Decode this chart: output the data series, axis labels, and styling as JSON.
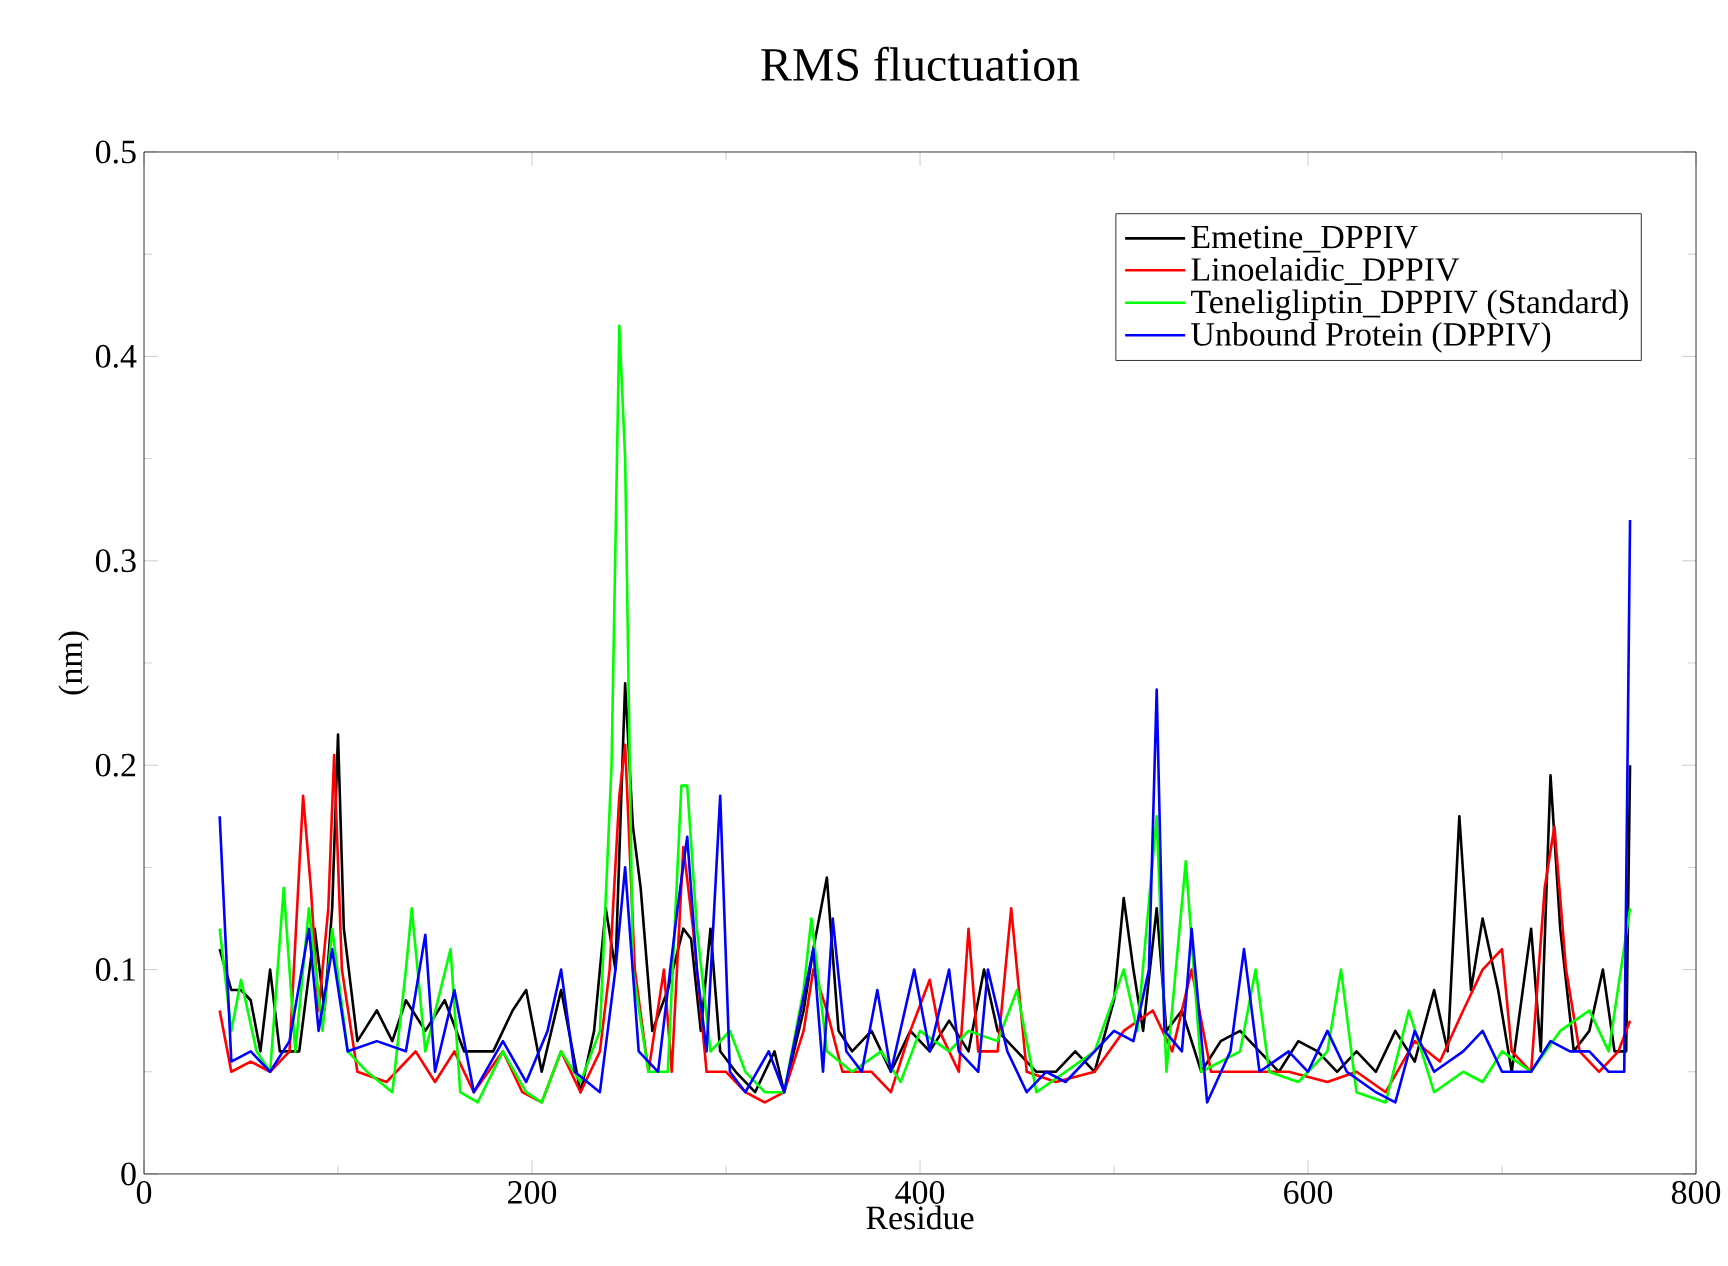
{
  "chart_data": {
    "type": "line",
    "title": "RMS fluctuation",
    "xlabel": "Residue",
    "ylabel": "(nm)",
    "xlim": [
      0,
      800
    ],
    "ylim": [
      0,
      0.5
    ],
    "xticks": [
      0,
      200,
      400,
      600,
      800
    ],
    "yticks": [
      0,
      0.1,
      0.2,
      0.3,
      0.4,
      0.5
    ],
    "legend": "top right",
    "grid": false,
    "marker": "none",
    "line_style": "solid",
    "series": [
      {
        "name": "Emetine_DPPIV",
        "color": "#000000",
        "x": [
          39,
          45,
          50,
          55,
          60,
          65,
          70,
          80,
          88,
          93,
          97,
          100,
          103,
          110,
          120,
          128,
          135,
          145,
          155,
          165,
          180,
          190,
          197,
          205,
          215,
          225,
          232,
          238,
          243,
          248,
          252,
          256,
          262,
          270,
          278,
          282,
          287,
          292,
          297,
          305,
          315,
          325,
          330,
          340,
          345,
          352,
          358,
          365,
          375,
          385,
          395,
          405,
          415,
          425,
          433,
          440,
          450,
          460,
          470,
          480,
          490,
          500,
          505,
          510,
          515,
          522,
          527,
          535,
          545,
          555,
          565,
          575,
          585,
          595,
          605,
          615,
          625,
          635,
          645,
          655,
          665,
          672,
          678,
          684,
          690,
          698,
          705,
          715,
          720,
          725,
          730,
          737,
          745,
          752,
          758,
          764,
          766
        ],
        "values": [
          0.11,
          0.09,
          0.09,
          0.085,
          0.06,
          0.1,
          0.06,
          0.06,
          0.12,
          0.08,
          0.13,
          0.215,
          0.12,
          0.065,
          0.08,
          0.065,
          0.085,
          0.07,
          0.085,
          0.06,
          0.06,
          0.08,
          0.09,
          0.05,
          0.09,
          0.04,
          0.07,
          0.13,
          0.1,
          0.24,
          0.17,
          0.14,
          0.07,
          0.09,
          0.12,
          0.115,
          0.07,
          0.12,
          0.06,
          0.05,
          0.04,
          0.06,
          0.04,
          0.08,
          0.11,
          0.145,
          0.07,
          0.06,
          0.07,
          0.05,
          0.07,
          0.06,
          0.075,
          0.06,
          0.1,
          0.07,
          0.06,
          0.05,
          0.05,
          0.06,
          0.05,
          0.085,
          0.135,
          0.1,
          0.07,
          0.13,
          0.07,
          0.08,
          0.05,
          0.065,
          0.07,
          0.06,
          0.05,
          0.065,
          0.06,
          0.05,
          0.06,
          0.05,
          0.07,
          0.055,
          0.09,
          0.06,
          0.175,
          0.09,
          0.125,
          0.09,
          0.05,
          0.12,
          0.06,
          0.195,
          0.12,
          0.06,
          0.07,
          0.1,
          0.06,
          0.06,
          0.2
        ]
      },
      {
        "name": "Linoelaidic_DPPIV",
        "color": "#ff0000",
        "x": [
          39,
          45,
          55,
          65,
          75,
          82,
          86,
          90,
          95,
          98,
          102,
          110,
          125,
          140,
          150,
          160,
          170,
          185,
          195,
          205,
          215,
          225,
          235,
          240,
          245,
          248,
          253,
          260,
          268,
          272,
          278,
          283,
          290,
          300,
          310,
          320,
          330,
          340,
          345,
          352,
          360,
          375,
          385,
          395,
          405,
          410,
          420,
          425,
          430,
          440,
          447,
          455,
          470,
          490,
          505,
          520,
          530,
          540,
          550,
          570,
          590,
          610,
          625,
          640,
          655,
          668,
          680,
          690,
          700,
          705,
          715,
          722,
          727,
          733,
          740,
          750,
          760,
          766
        ],
        "values": [
          0.08,
          0.05,
          0.055,
          0.05,
          0.06,
          0.185,
          0.14,
          0.08,
          0.13,
          0.205,
          0.1,
          0.05,
          0.045,
          0.06,
          0.045,
          0.06,
          0.04,
          0.06,
          0.04,
          0.035,
          0.06,
          0.04,
          0.06,
          0.1,
          0.185,
          0.21,
          0.1,
          0.05,
          0.1,
          0.05,
          0.16,
          0.12,
          0.05,
          0.05,
          0.04,
          0.035,
          0.04,
          0.07,
          0.1,
          0.08,
          0.05,
          0.05,
          0.04,
          0.07,
          0.095,
          0.07,
          0.05,
          0.12,
          0.06,
          0.06,
          0.13,
          0.05,
          0.045,
          0.05,
          0.07,
          0.08,
          0.06,
          0.1,
          0.05,
          0.05,
          0.05,
          0.045,
          0.05,
          0.04,
          0.065,
          0.055,
          0.08,
          0.1,
          0.11,
          0.06,
          0.05,
          0.14,
          0.17,
          0.1,
          0.06,
          0.05,
          0.06,
          0.075
        ]
      },
      {
        "name": "Teneligliptin_DPPIV (Standard)",
        "color": "#00ff00",
        "x": [
          39,
          45,
          50,
          58,
          65,
          72,
          78,
          85,
          92,
          97,
          105,
          115,
          128,
          135,
          138,
          145,
          158,
          163,
          172,
          185,
          197,
          205,
          215,
          225,
          235,
          241,
          245,
          248,
          252,
          260,
          270,
          277,
          280,
          285,
          292,
          302,
          310,
          320,
          330,
          340,
          344,
          352,
          365,
          380,
          390,
          400,
          415,
          425,
          440,
          450,
          460,
          475,
          490,
          505,
          512,
          522,
          527,
          537,
          545,
          565,
          573,
          580,
          595,
          610,
          617,
          625,
          640,
          652,
          665,
          680,
          690,
          700,
          715,
          730,
          745,
          755,
          766
        ],
        "values": [
          0.12,
          0.07,
          0.095,
          0.06,
          0.05,
          0.14,
          0.06,
          0.13,
          0.07,
          0.12,
          0.06,
          0.05,
          0.04,
          0.1,
          0.13,
          0.06,
          0.11,
          0.04,
          0.035,
          0.06,
          0.04,
          0.035,
          0.06,
          0.045,
          0.07,
          0.2,
          0.415,
          0.35,
          0.1,
          0.05,
          0.05,
          0.19,
          0.19,
          0.12,
          0.06,
          0.07,
          0.05,
          0.04,
          0.04,
          0.09,
          0.125,
          0.06,
          0.05,
          0.06,
          0.045,
          0.07,
          0.06,
          0.07,
          0.065,
          0.09,
          0.04,
          0.05,
          0.06,
          0.1,
          0.07,
          0.175,
          0.05,
          0.153,
          0.05,
          0.06,
          0.1,
          0.05,
          0.045,
          0.06,
          0.1,
          0.04,
          0.035,
          0.08,
          0.04,
          0.05,
          0.045,
          0.06,
          0.05,
          0.07,
          0.08,
          0.06,
          0.13
        ]
      },
      {
        "name": "Unbound Protein (DPPIV)",
        "color": "#0000ff",
        "x": [
          39,
          45,
          55,
          65,
          75,
          85,
          90,
          97,
          105,
          120,
          135,
          145,
          150,
          160,
          170,
          185,
          197,
          208,
          215,
          222,
          235,
          243,
          248,
          255,
          265,
          275,
          280,
          285,
          290,
          297,
          302,
          310,
          322,
          330,
          345,
          350,
          355,
          362,
          370,
          378,
          385,
          397,
          405,
          415,
          420,
          430,
          435,
          445,
          455,
          465,
          475,
          490,
          500,
          510,
          518,
          522,
          526,
          535,
          540,
          548,
          560,
          567,
          575,
          590,
          600,
          610,
          620,
          635,
          645,
          655,
          665,
          680,
          690,
          700,
          715,
          725,
          735,
          745,
          755,
          763,
          766
        ],
        "values": [
          0.175,
          0.055,
          0.06,
          0.05,
          0.065,
          0.12,
          0.07,
          0.11,
          0.06,
          0.065,
          0.06,
          0.117,
          0.05,
          0.09,
          0.04,
          0.065,
          0.045,
          0.07,
          0.1,
          0.05,
          0.04,
          0.1,
          0.15,
          0.06,
          0.05,
          0.13,
          0.165,
          0.1,
          0.06,
          0.185,
          0.05,
          0.04,
          0.06,
          0.04,
          0.11,
          0.05,
          0.125,
          0.06,
          0.05,
          0.09,
          0.05,
          0.1,
          0.06,
          0.1,
          0.06,
          0.05,
          0.1,
          0.06,
          0.04,
          0.05,
          0.045,
          0.06,
          0.07,
          0.065,
          0.1,
          0.237,
          0.07,
          0.06,
          0.12,
          0.035,
          0.06,
          0.11,
          0.05,
          0.06,
          0.05,
          0.07,
          0.05,
          0.04,
          0.035,
          0.07,
          0.05,
          0.06,
          0.07,
          0.05,
          0.05,
          0.065,
          0.06,
          0.06,
          0.05,
          0.05,
          0.32
        ]
      }
    ]
  }
}
